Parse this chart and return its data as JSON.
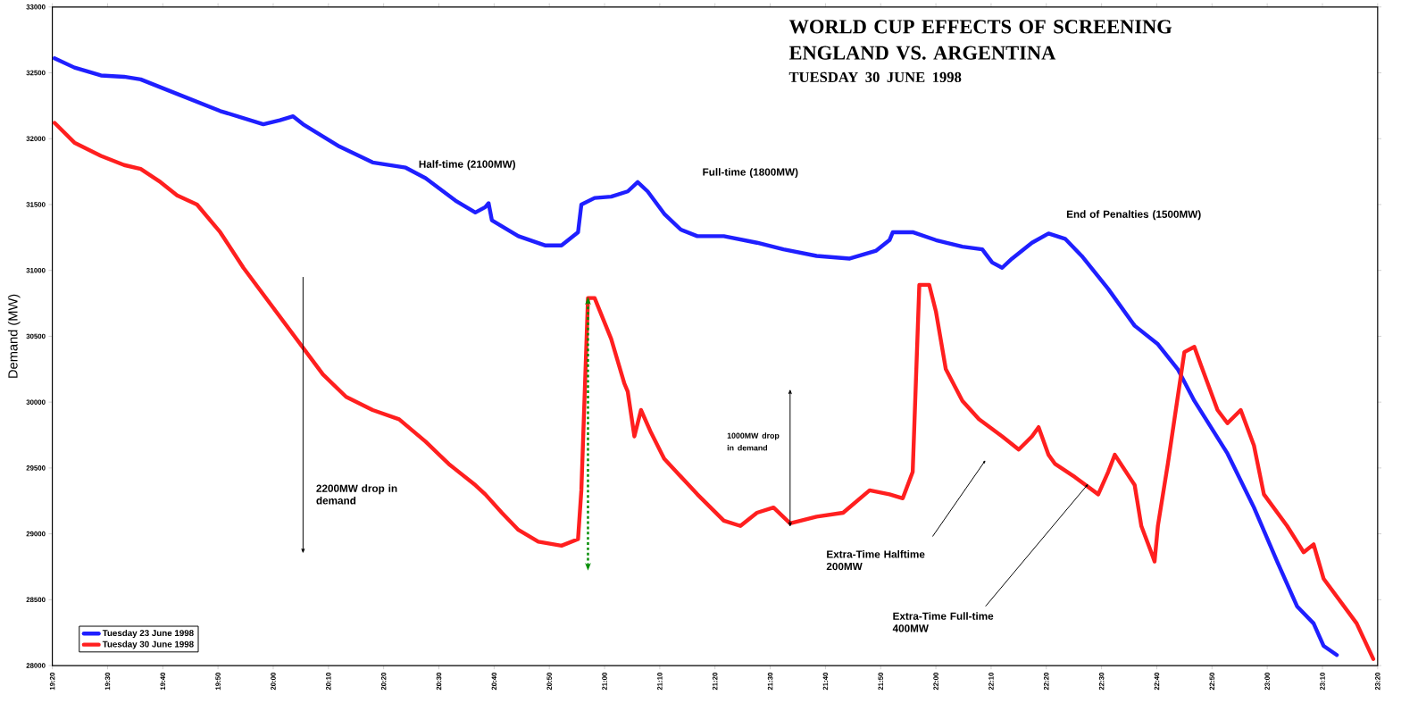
{
  "chart_data": {
    "type": "line",
    "title": "WORLD CUP EFFECTS OF SCREENING ENGLAND VS. ARGENTINA",
    "subtitle": "TUESDAY 30 JUNE 1998",
    "ylabel": "Demand (MW)",
    "xlim": [
      19.3333,
      23.3333
    ],
    "ylim": [
      28000,
      33000
    ],
    "yticks": [
      28000,
      28500,
      29000,
      29500,
      30000,
      30500,
      31000,
      31500,
      32000,
      32500,
      33000
    ],
    "xticks": [
      {
        "value": 19.3333,
        "label": "19:20"
      },
      {
        "value": 19.5,
        "label": "19:30"
      },
      {
        "value": 19.6667,
        "label": "19:40"
      },
      {
        "value": 19.8333,
        "label": "19:50"
      },
      {
        "value": 20.0,
        "label": "20:00"
      },
      {
        "value": 20.1667,
        "label": "20:10"
      },
      {
        "value": 20.3333,
        "label": "20:20"
      },
      {
        "value": 20.5,
        "label": "20:30"
      },
      {
        "value": 20.6667,
        "label": "20:40"
      },
      {
        "value": 20.8333,
        "label": "20:50"
      },
      {
        "value": 21.0,
        "label": "21:00"
      },
      {
        "value": 21.1667,
        "label": "21:10"
      },
      {
        "value": 21.3333,
        "label": "21:20"
      },
      {
        "value": 21.5,
        "label": "21:30"
      },
      {
        "value": 21.6667,
        "label": "21:40"
      },
      {
        "value": 21.8333,
        "label": "21:50"
      },
      {
        "value": 22.0,
        "label": "22:00"
      },
      {
        "value": 22.1667,
        "label": "22:10"
      },
      {
        "value": 22.3333,
        "label": "22:20"
      },
      {
        "value": 22.5,
        "label": "22:30"
      },
      {
        "value": 22.6667,
        "label": "22:40"
      },
      {
        "value": 22.8333,
        "label": "22:50"
      },
      {
        "value": 23.0,
        "label": "23:00"
      },
      {
        "value": 23.1667,
        "label": "23:10"
      },
      {
        "value": 23.3333,
        "label": "23:20"
      }
    ],
    "legend": "bottom left",
    "grid": false,
    "series": [
      {
        "name": "Tuesday 23 June 1998",
        "color": "#1f1fff",
        "x": [
          19.34,
          19.4,
          19.48,
          19.55,
          19.6,
          19.71,
          19.84,
          19.97,
          20.02,
          20.06,
          20.09,
          20.2,
          20.3,
          20.4,
          20.46,
          20.55,
          20.61,
          20.64,
          20.65,
          20.66,
          20.74,
          20.82,
          20.87,
          20.92,
          20.93,
          20.97,
          21.02,
          21.07,
          21.1,
          21.13,
          21.18,
          21.23,
          21.28,
          21.36,
          21.46,
          21.54,
          21.64,
          21.74,
          21.82,
          21.86,
          21.87,
          21.93,
          22.0,
          22.08,
          22.14,
          22.17,
          22.2,
          22.23,
          22.29,
          22.34,
          22.39,
          22.44,
          22.52,
          22.6,
          22.67,
          22.73,
          22.78,
          22.88,
          22.96,
          23.03,
          23.09,
          23.14,
          23.17,
          23.21
        ],
        "values": [
          32610,
          32540,
          32480,
          32470,
          32450,
          32340,
          32210,
          32110,
          32140,
          32170,
          32110,
          31940,
          31820,
          31780,
          31700,
          31530,
          31440,
          31480,
          31510,
          31380,
          31260,
          31190,
          31190,
          31290,
          31500,
          31550,
          31560,
          31600,
          31670,
          31600,
          31430,
          31310,
          31260,
          31260,
          31210,
          31160,
          31110,
          31090,
          31150,
          31230,
          31290,
          31290,
          31230,
          31180,
          31160,
          31060,
          31020,
          31090,
          31210,
          31280,
          31240,
          31110,
          30860,
          30580,
          30440,
          30250,
          30010,
          29610,
          29200,
          28790,
          28450,
          28320,
          28150,
          28080
        ]
      },
      {
        "name": "Tuesday 30 June 1998",
        "color": "#ff1f1f",
        "x": [
          19.34,
          19.4,
          19.48,
          19.55,
          19.6,
          19.66,
          19.71,
          19.77,
          19.84,
          19.91,
          19.99,
          20.07,
          20.15,
          20.22,
          20.3,
          20.38,
          20.46,
          20.53,
          20.61,
          20.64,
          20.69,
          20.74,
          20.8,
          20.87,
          20.92,
          20.93,
          20.95,
          20.97,
          21.02,
          21.06,
          21.07,
          21.09,
          21.11,
          21.14,
          21.18,
          21.28,
          21.36,
          21.41,
          21.46,
          21.51,
          21.56,
          21.64,
          21.72,
          21.8,
          21.86,
          21.9,
          21.93,
          21.95,
          21.98,
          22.0,
          22.03,
          22.08,
          22.13,
          22.2,
          22.25,
          22.29,
          22.31,
          22.34,
          22.36,
          22.42,
          22.49,
          22.52,
          22.54,
          22.6,
          22.62,
          22.65,
          22.66,
          22.67,
          22.7,
          22.75,
          22.78,
          22.8,
          22.85,
          22.88,
          22.92,
          22.96,
          22.99,
          23.06,
          23.09,
          23.11,
          23.14,
          23.17,
          23.27,
          23.32
        ],
        "values": [
          32120,
          31970,
          31870,
          31800,
          31770,
          31670,
          31570,
          31500,
          31290,
          31020,
          30750,
          30480,
          30210,
          30040,
          29940,
          29870,
          29700,
          29530,
          29370,
          29300,
          29160,
          29030,
          28940,
          28910,
          28960,
          29330,
          30790,
          30790,
          30480,
          30140,
          30080,
          29740,
          29940,
          29770,
          29570,
          29300,
          29100,
          29060,
          29160,
          29200,
          29080,
          29130,
          29160,
          29330,
          29300,
          29270,
          29470,
          30890,
          30890,
          30690,
          30250,
          30010,
          29870,
          29740,
          29640,
          29740,
          29810,
          29600,
          29530,
          29430,
          29300,
          29470,
          29600,
          29370,
          29060,
          28860,
          28790,
          29060,
          29530,
          30380,
          30420,
          30280,
          29940,
          29840,
          29940,
          29670,
          29300,
          29060,
          28940,
          28860,
          28920,
          28660,
          28320,
          28050
        ]
      }
    ],
    "annotations": [
      "Half-time (2100MW)",
      "Full-time (1800MW)",
      "End of Penalties (1500MW)",
      "2200MW drop in demand",
      "1000MW drop in demand",
      "Extra-Time Halftime 200MW",
      {
        "text": "Extra-Time Full-time 400MW",
        "x": 22.46,
        "y": 29380
      }
    ]
  }
}
